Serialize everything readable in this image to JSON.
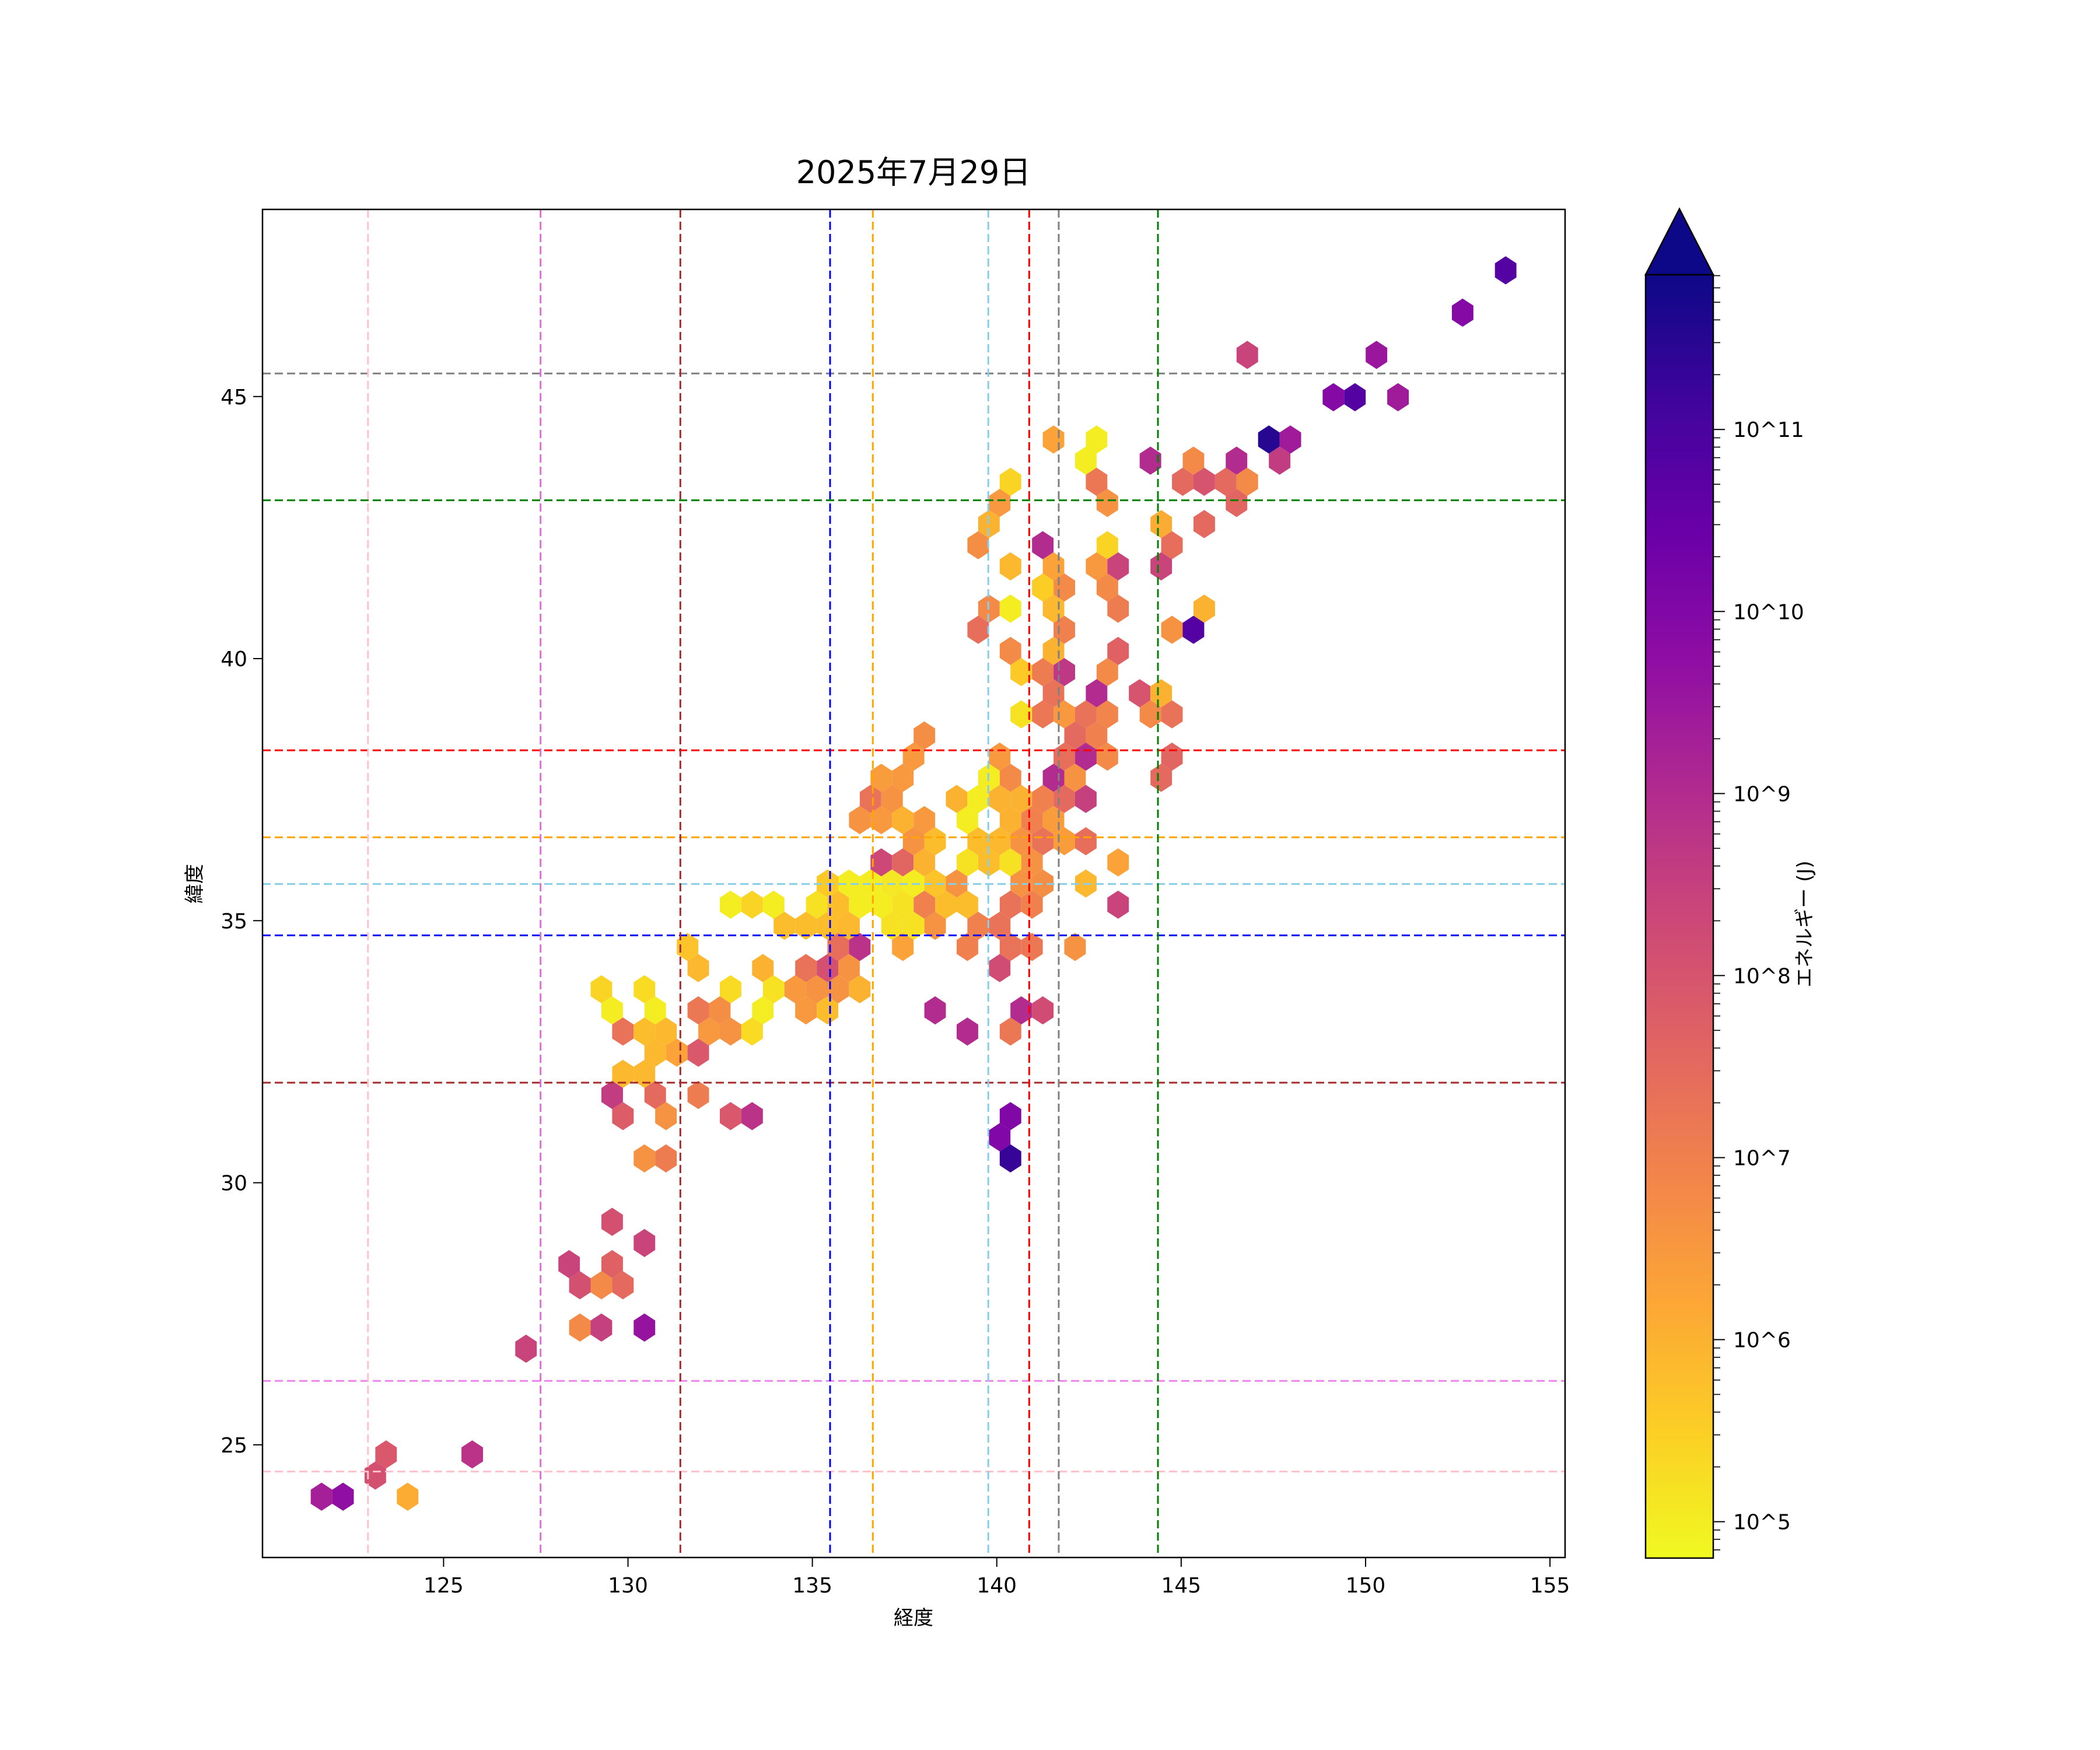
{
  "chart_data": {
    "type": "hexbin",
    "title": "2025年7月29日",
    "xlabel": "経度",
    "ylabel": "緯度",
    "xlim": [
      120.09,
      155.41
    ],
    "ylim": [
      22.85,
      48.57
    ],
    "xticks": [
      125,
      130,
      135,
      140,
      145,
      150,
      155
    ],
    "yticks": [
      25,
      30,
      35,
      40,
      45
    ],
    "grid": false,
    "colorbar": {
      "label": "エネルギー (J)",
      "scale": "log",
      "colormap": "plasma_r",
      "range_log10": [
        4.8,
        11.85
      ],
      "extend": "max",
      "ticks_log10": [
        5,
        6,
        7,
        8,
        9,
        10,
        11
      ],
      "tick_labels": [
        "10^5",
        "10^6",
        "10^7",
        "10^8",
        "10^9",
        "10^10",
        "10^11"
      ]
    },
    "reference_lines": [
      {
        "orientation": "horizontal",
        "value": 45.44,
        "color": "#808080"
      },
      {
        "orientation": "horizontal",
        "value": 43.02,
        "color": "#008000"
      },
      {
        "orientation": "horizontal",
        "value": 38.25,
        "color": "#ff0000"
      },
      {
        "orientation": "horizontal",
        "value": 36.59,
        "color": "#ffa500"
      },
      {
        "orientation": "horizontal",
        "value": 35.7,
        "color": "#87ceeb"
      },
      {
        "orientation": "horizontal",
        "value": 34.72,
        "color": "#0000ff"
      },
      {
        "orientation": "horizontal",
        "value": 31.91,
        "color": "#a52a2a"
      },
      {
        "orientation": "horizontal",
        "value": 26.22,
        "color": "#ee82ee"
      },
      {
        "orientation": "horizontal",
        "value": 24.49,
        "color": "#ffc0cb"
      },
      {
        "orientation": "vertical",
        "value": 122.95,
        "color": "#ffc0cb"
      },
      {
        "orientation": "vertical",
        "value": 127.63,
        "color": "#da70d6"
      },
      {
        "orientation": "vertical",
        "value": 131.42,
        "color": "#a52a2a"
      },
      {
        "orientation": "vertical",
        "value": 135.48,
        "color": "#0000ff"
      },
      {
        "orientation": "vertical",
        "value": 136.64,
        "color": "#ffa500"
      },
      {
        "orientation": "vertical",
        "value": 139.77,
        "color": "#87ceeb"
      },
      {
        "orientation": "vertical",
        "value": 140.88,
        "color": "#ff0000"
      },
      {
        "orientation": "vertical",
        "value": 141.68,
        "color": "#808080"
      },
      {
        "orientation": "vertical",
        "value": 144.37,
        "color": "#008000"
      }
    ],
    "hexbin_columns": [
      "lon",
      "lat",
      "log10_energy_J"
    ],
    "hexbins": [
      [
        153.8,
        47.4,
        10.8
      ],
      [
        152.61,
        46.66,
        9.95
      ],
      [
        150.28,
        45.9,
        9.5
      ],
      [
        146.79,
        45.9,
        8.4
      ],
      [
        149.12,
        45.15,
        9.95
      ],
      [
        149.7,
        45.15,
        10.8
      ],
      [
        150.86,
        45.15,
        9.4
      ],
      [
        148.25,
        44.0,
        9.4
      ],
      [
        141.54,
        44.38,
        6.3
      ],
      [
        142.42,
        44.01,
        5.0
      ],
      [
        142.13,
        43.64,
        5.0
      ],
      [
        144.44,
        43.63,
        9.0
      ],
      [
        145.05,
        43.63,
        6.8
      ],
      [
        147.09,
        44.01,
        11.5
      ],
      [
        146.79,
        43.63,
        9.0
      ],
      [
        147.39,
        43.63,
        8.6
      ],
      [
        140.66,
        43.26,
        5.4
      ],
      [
        142.42,
        43.26,
        7.2
      ],
      [
        144.76,
        43.26,
        7.5
      ],
      [
        145.34,
        43.26,
        8.0
      ],
      [
        145.92,
        43.26,
        7.5
      ],
      [
        146.51,
        43.26,
        6.8
      ],
      [
        146.21,
        42.86,
        7.6
      ],
      [
        139.8,
        42.89,
        6.5
      ],
      [
        142.71,
        42.86,
        6.0
      ],
      [
        143.29,
        42.86,
        6.6
      ],
      [
        139.5,
        42.51,
        6.0
      ],
      [
        144.17,
        42.51,
        6.8
      ],
      [
        144.75,
        42.51,
        6.1
      ],
      [
        145.34,
        42.51,
        7.5
      ],
      [
        139.21,
        42.12,
        6.7
      ],
      [
        140.96,
        42.14,
        9.0
      ],
      [
        144.46,
        42.12,
        7.4
      ],
      [
        142.71,
        42.14,
        5.4
      ],
      [
        140.66,
        41.74,
        5.9
      ],
      [
        141.83,
        41.74,
        6.3
      ],
      [
        142.42,
        41.74,
        6.5
      ],
      [
        143.0,
        41.74,
        8.4
      ],
      [
        144.17,
        41.74,
        8.4
      ],
      [
        141.51,
        41.36,
        5.5
      ],
      [
        142.11,
        41.36,
        6.8
      ],
      [
        142.71,
        41.36,
        6.5
      ],
      [
        143.29,
        41.36,
        6.8
      ],
      [
        139.5,
        40.97,
        6.8
      ],
      [
        140.08,
        40.97,
        6.7
      ],
      [
        140.66,
        40.97,
        5.0
      ],
      [
        141.26,
        40.97,
        5.9
      ],
      [
        141.83,
        40.97,
        5.9
      ],
      [
        143.0,
        40.97,
        7.1
      ],
      [
        145.34,
        40.97,
        6.0
      ],
      [
        139.21,
        40.6,
        7.4
      ],
      [
        141.54,
        40.6,
        7.0
      ],
      [
        144.46,
        40.6,
        6.6
      ],
      [
        145.05,
        40.6,
        10.8
      ],
      [
        140.66,
        40.23,
        6.8
      ],
      [
        141.26,
        40.23,
        5.6
      ],
      [
        141.83,
        40.23,
        6.0
      ],
      [
        143.0,
        40.23,
        7.7
      ],
      [
        140.38,
        39.83,
        5.6
      ],
      [
        140.96,
        39.83,
        7.1
      ],
      [
        142.11,
        39.85,
        8.7
      ],
      [
        143.29,
        39.85,
        6.8
      ],
      [
        141.26,
        39.48,
        6.5
      ],
      [
        141.83,
        39.48,
        7.3
      ],
      [
        142.42,
        39.48,
        9.0
      ],
      [
        143.59,
        39.48,
        8.0
      ],
      [
        144.17,
        39.48,
        9.0
      ],
      [
        144.75,
        39.48,
        6.0
      ],
      [
        140.95,
        39.11,
        5.2
      ],
      [
        142.11,
        39.11,
        6.0
      ],
      [
        142.71,
        39.11,
        6.9
      ],
      [
        143.88,
        39.11,
        6.0
      ],
      [
        144.46,
        39.11,
        7.3
      ],
      [
        141.26,
        38.74,
        7.2
      ],
      [
        141.83,
        38.74,
        6.5
      ],
      [
        142.42,
        38.74,
        7.3
      ],
      [
        144.17,
        38.74,
        6.8
      ],
      [
        138.04,
        38.37,
        6.7
      ],
      [
        142.11,
        38.37,
        7.5
      ],
      [
        142.71,
        38.37,
        7.0
      ],
      [
        144.75,
        37.99,
        7.6
      ],
      [
        144.46,
        37.59,
        7.5
      ],
      [
        137.75,
        37.99,
        6.5
      ],
      [
        140.08,
        37.99,
        6.5
      ],
      [
        141.83,
        37.99,
        7.4
      ],
      [
        142.42,
        37.99,
        9.0
      ],
      [
        143.0,
        37.99,
        6.8
      ],
      [
        137.13,
        37.62,
        6.5
      ],
      [
        137.46,
        37.62,
        6.5
      ],
      [
        136.86,
        37.62,
        6.4
      ],
      [
        139.78,
        37.62,
        5.0
      ],
      [
        140.38,
        37.62,
        6.8
      ],
      [
        141.51,
        37.62,
        9.0
      ],
      [
        142.11,
        37.62,
        6.6
      ],
      [
        142.42,
        37.24,
        8.5
      ],
      [
        141.83,
        37.24,
        7.5
      ],
      [
        136.55,
        37.29,
        7.3
      ],
      [
        137.16,
        37.29,
        6.6
      ],
      [
        138.92,
        37.2,
        6.0
      ],
      [
        139.49,
        37.2,
        5.0
      ],
      [
        140.1,
        37.2,
        6.0
      ],
      [
        140.64,
        37.2,
        6.0
      ],
      [
        141.25,
        37.2,
        7.0
      ],
      [
        136.28,
        36.84,
        6.6
      ],
      [
        136.86,
        36.84,
        6.5
      ],
      [
        137.43,
        36.84,
        6.0
      ],
      [
        138.04,
        36.84,
        6.5
      ],
      [
        139.22,
        36.84,
        5.0
      ],
      [
        140.37,
        36.84,
        6.0
      ],
      [
        140.94,
        36.84,
        7.0
      ],
      [
        141.52,
        36.84,
        6.4
      ],
      [
        137.73,
        36.48,
        6.6
      ],
      [
        138.34,
        36.48,
        5.8
      ],
      [
        139.49,
        36.48,
        5.8
      ],
      [
        140.1,
        36.48,
        5.9
      ],
      [
        140.67,
        36.48,
        6.6
      ],
      [
        141.25,
        36.48,
        7.3
      ],
      [
        141.82,
        36.48,
        6.4
      ],
      [
        142.43,
        36.48,
        7.4
      ],
      [
        136.86,
        36.12,
        8.3
      ],
      [
        137.43,
        36.12,
        7.6
      ],
      [
        138.04,
        36.12,
        6.0
      ],
      [
        139.22,
        36.1,
        5.2
      ],
      [
        139.79,
        36.1,
        5.8
      ],
      [
        140.37,
        36.1,
        5.2
      ],
      [
        140.94,
        36.1,
        6.6
      ],
      [
        143.31,
        36.1,
        6.3
      ],
      [
        135.41,
        35.71,
        5.6
      ],
      [
        135.98,
        35.71,
        5.0
      ],
      [
        136.55,
        35.71,
        5.0
      ],
      [
        137.16,
        35.71,
        5.1
      ],
      [
        137.73,
        35.71,
        5.0
      ],
      [
        138.34,
        35.71,
        5.7
      ],
      [
        138.92,
        35.71,
        6.6
      ],
      [
        140.67,
        35.71,
        6.6
      ],
      [
        141.25,
        35.71,
        6.7
      ],
      [
        142.43,
        35.71,
        5.9
      ],
      [
        132.77,
        35.33,
        5.0
      ],
      [
        133.36,
        35.33,
        5.4
      ],
      [
        133.95,
        35.33,
        5.0
      ],
      [
        135.14,
        35.33,
        5.2
      ],
      [
        135.73,
        35.33,
        5.8
      ],
      [
        136.32,
        35.33,
        5.0
      ],
      [
        136.86,
        35.33,
        5.0
      ],
      [
        137.45,
        35.33,
        5.2
      ],
      [
        138.04,
        35.33,
        7.0
      ],
      [
        138.63,
        35.33,
        5.8
      ],
      [
        139.22,
        35.33,
        5.8
      ],
      [
        140.37,
        35.37,
        7.3
      ],
      [
        140.94,
        35.37,
        7.0
      ],
      [
        143.31,
        35.33,
        8.4
      ],
      [
        134.27,
        34.95,
        5.8
      ],
      [
        134.82,
        34.95,
        5.8
      ],
      [
        135.41,
        34.95,
        5.8
      ],
      [
        135.99,
        34.95,
        5.9
      ],
      [
        137.18,
        34.95,
        5.2
      ],
      [
        137.73,
        34.95,
        5.2
      ],
      [
        138.36,
        34.95,
        6.6
      ],
      [
        139.49,
        35.01,
        7.0
      ],
      [
        140.1,
        35.01,
        7.3
      ],
      [
        131.64,
        34.56,
        5.7
      ],
      [
        135.73,
        34.56,
        7.4
      ],
      [
        136.32,
        34.56,
        8.8
      ],
      [
        137.45,
        34.56,
        6.3
      ],
      [
        139.22,
        34.56,
        7.0
      ],
      [
        140.36,
        34.56,
        7.3
      ],
      [
        140.95,
        34.56,
        7.2
      ],
      [
        142.08,
        34.56,
        6.6
      ],
      [
        131.91,
        34.2,
        5.9
      ],
      [
        133.64,
        34.2,
        6.0
      ],
      [
        134.82,
        34.2,
        7.3
      ],
      [
        135.41,
        34.2,
        8.1
      ],
      [
        135.99,
        34.2,
        6.6
      ],
      [
        140.09,
        34.2,
        8.2
      ],
      [
        129.28,
        33.82,
        5.4
      ],
      [
        130.46,
        33.82,
        5.3
      ],
      [
        132.77,
        33.82,
        5.3
      ],
      [
        133.95,
        33.82,
        5.2
      ],
      [
        134.54,
        33.82,
        6.5
      ],
      [
        135.14,
        33.82,
        6.6
      ],
      [
        135.73,
        33.82,
        6.6
      ],
      [
        136.32,
        33.82,
        6.0
      ],
      [
        129.6,
        33.45,
        5.0
      ],
      [
        130.73,
        33.45,
        5.0
      ],
      [
        131.91,
        33.45,
        7.2
      ],
      [
        132.5,
        33.45,
        6.7
      ],
      [
        133.64,
        33.45,
        5.0
      ],
      [
        134.82,
        33.45,
        6.5
      ],
      [
        135.41,
        33.45,
        5.8
      ],
      [
        138.31,
        33.45,
        9.0
      ],
      [
        140.63,
        33.45,
        9.0
      ],
      [
        141.22,
        33.45,
        8.2
      ],
      [
        130.46,
        33.07,
        6.4
      ],
      [
        131.05,
        33.07,
        8.3
      ],
      [
        132.18,
        33.07,
        6.6
      ],
      [
        132.82,
        33.07,
        6.6
      ],
      [
        139.22,
        33.07,
        9.0
      ],
      [
        140.36,
        33.07,
        7.2
      ],
      [
        129.6,
        32.7,
        5.0
      ],
      [
        130.14,
        32.7,
        7.3
      ],
      [
        130.73,
        32.7,
        5.8
      ],
      [
        131.32,
        32.7,
        5.9
      ],
      [
        131.91,
        32.7,
        6.5
      ],
      [
        133.09,
        32.7,
        5.3
      ],
      [
        130.46,
        32.3,
        5.9
      ],
      [
        131.05,
        32.3,
        6.3
      ],
      [
        131.64,
        32.3,
        6.6
      ],
      [
        132.18,
        32.3,
        7.9
      ],
      [
        130.14,
        31.93,
        5.9
      ],
      [
        130.73,
        31.93,
        5.9
      ],
      [
        129.28,
        31.6,
        8.6
      ],
      [
        130.46,
        31.6,
        7.5
      ],
      [
        132.18,
        31.6,
        7.1
      ],
      [
        130.14,
        31.2,
        7.8
      ],
      [
        131.32,
        31.2,
        6.6
      ],
      [
        132.5,
        31.2,
        7.9
      ],
      [
        133.09,
        31.2,
        8.8
      ],
      [
        140.09,
        31.2,
        10.0
      ],
      [
        140.36,
        30.8,
        10.0
      ],
      [
        130.73,
        30.45,
        6.6
      ],
      [
        131.32,
        30.45,
        7.1
      ],
      [
        140.09,
        30.45,
        11.3
      ],
      [
        129.3,
        29.29,
        8.1
      ],
      [
        130.16,
        28.92,
        8.4
      ],
      [
        128.13,
        28.55,
        8.4
      ],
      [
        129.3,
        28.55,
        7.7
      ],
      [
        128.41,
        28.17,
        8.1
      ],
      [
        128.99,
        28.17,
        6.8
      ],
      [
        129.58,
        28.17,
        7.5
      ],
      [
        128.41,
        27.4,
        6.8
      ],
      [
        128.99,
        27.4,
        8.5
      ],
      [
        130.16,
        27.4,
        9.6
      ],
      [
        127.24,
        26.65,
        8.4
      ],
      [
        123.45,
        24.77,
        7.9
      ],
      [
        123.16,
        24.39,
        8.1
      ],
      [
        125.79,
        24.77,
        8.8
      ],
      [
        121.7,
        24.01,
        9.3
      ],
      [
        122.28,
        24.01,
        9.7
      ],
      [
        124.03,
        24.01,
        6.1
      ]
    ],
    "colors": {
      "plasma_stops": [
        "#0d0887",
        "#41049d",
        "#6a00a8",
        "#8f0da4",
        "#b12a90",
        "#cc4778",
        "#e16462",
        "#f2844b",
        "#fca636",
        "#fcce25",
        "#f0f921"
      ]
    }
  }
}
